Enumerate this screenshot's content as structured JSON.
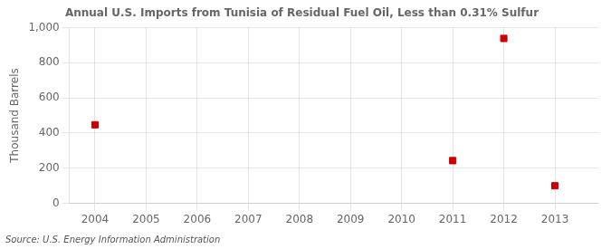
{
  "chart_data": {
    "type": "scatter",
    "title": "Annual U.S. Imports from Tunisia of Residual Fuel Oil, Less than 0.31% Sulfur",
    "ylabel": "Thousand Barrels",
    "source": "Source: U.S. Energy Information Administration",
    "x": [
      2004,
      2011,
      2012,
      2013
    ],
    "values": [
      447,
      243,
      938,
      100
    ],
    "color": "#cc0000",
    "marker": "square",
    "xlim": [
      2003.5,
      2013.85
    ],
    "xticks": [
      2004,
      2005,
      2006,
      2007,
      2008,
      2009,
      2010,
      2011,
      2012,
      2013
    ],
    "ylim": [
      0,
      1000
    ],
    "yticks": [
      0,
      200,
      400,
      600,
      800,
      {
        "value": 1000,
        "label": "1,000"
      }
    ],
    "grid": true
  }
}
